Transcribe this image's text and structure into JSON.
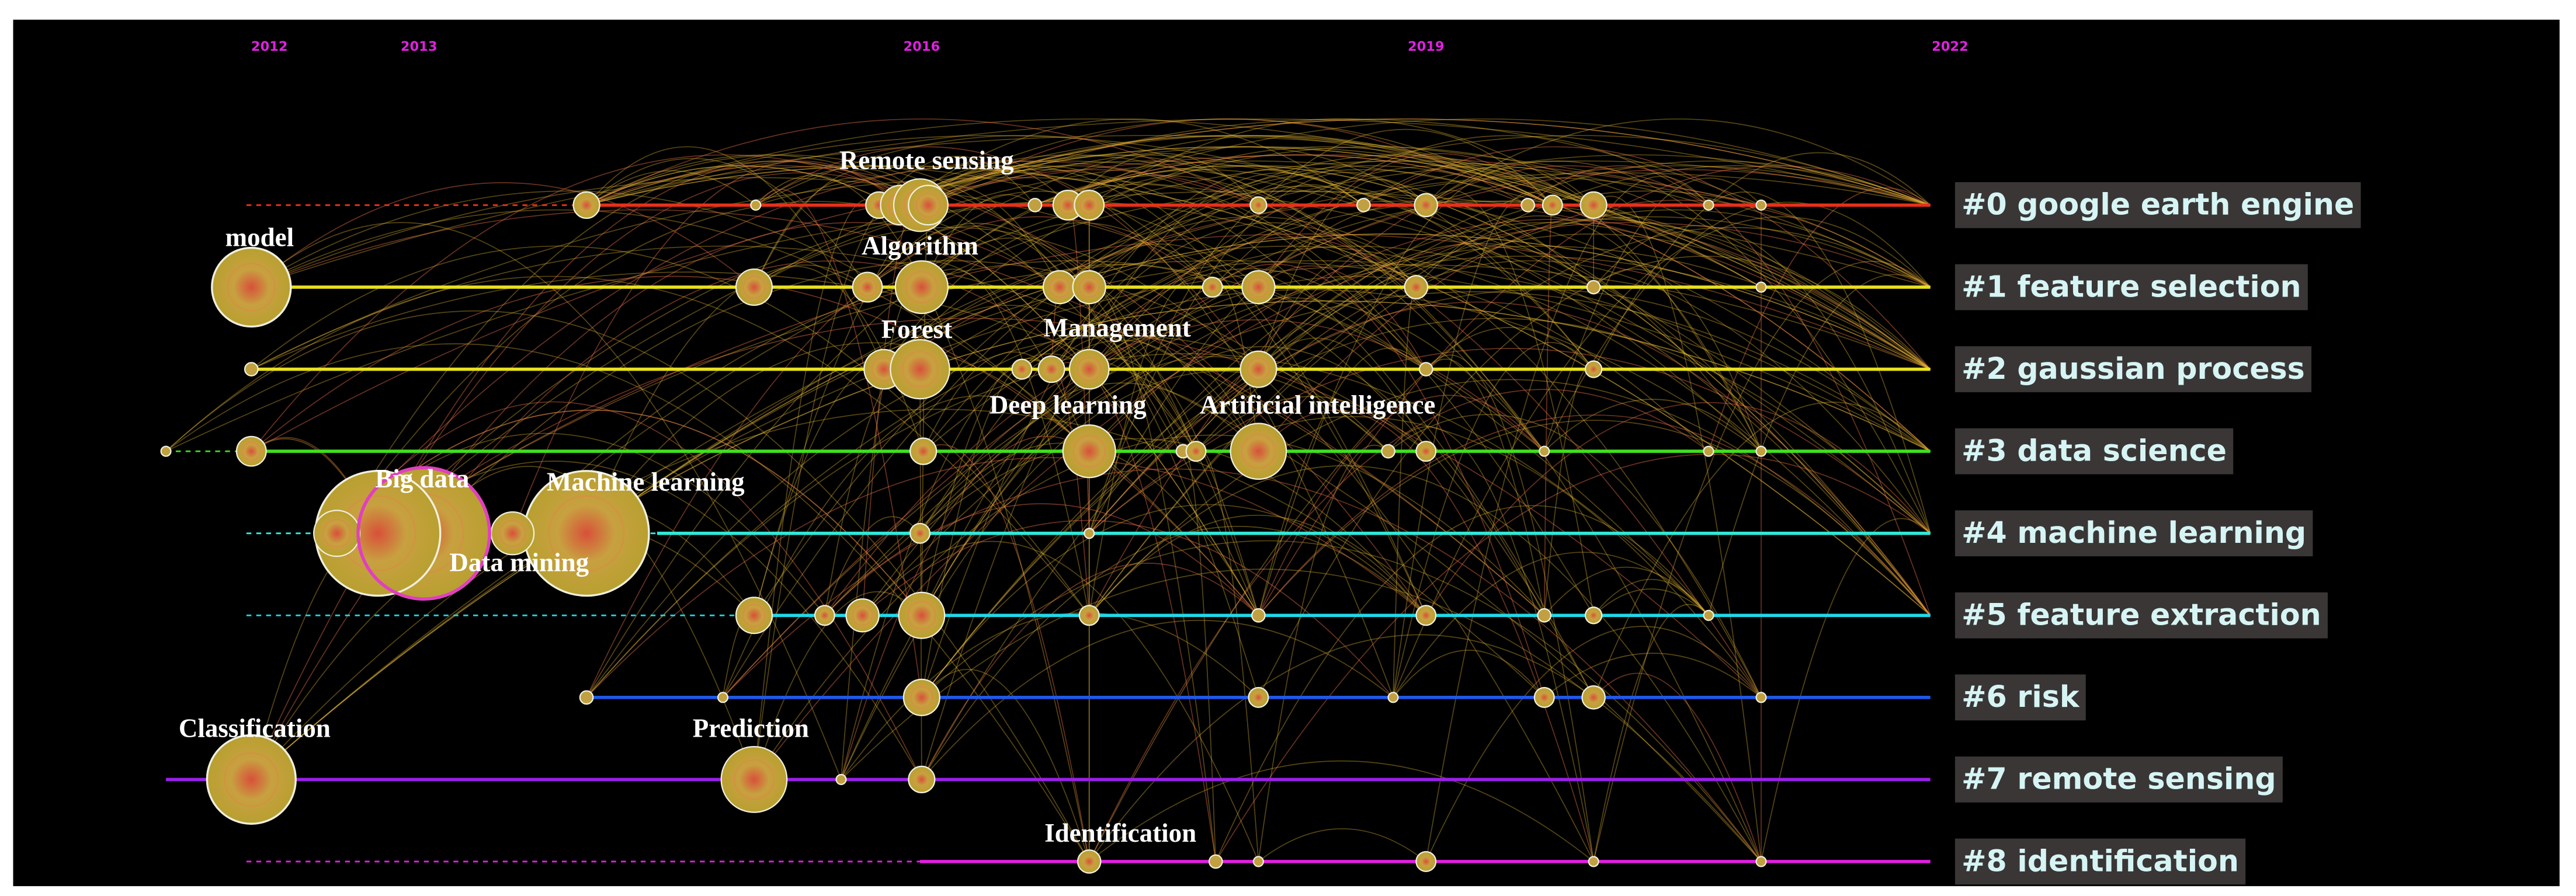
{
  "years": [
    "2012",
    "2013",
    "2016",
    "2019",
    "2022"
  ],
  "clusters": [
    {
      "label": "#0 google earth engine",
      "color": "#e8301a"
    },
    {
      "label": "#1 feature selection",
      "color": "#e8e020"
    },
    {
      "label": "#2 gaussian process",
      "color": "#e8e020"
    },
    {
      "label": "#3 data science",
      "color": "#40e020"
    },
    {
      "label": "#4 machine learning",
      "color": "#30e8d8"
    },
    {
      "label": "#5 feature extraction",
      "color": "#20d8e8"
    },
    {
      "label": "#6 risk",
      "color": "#2058e8"
    },
    {
      "label": "#7 remote sensing",
      "color": "#9a20e8"
    },
    {
      "label": "#8 identification",
      "color": "#e020e0"
    }
  ],
  "keywords": [
    "model",
    "Remote sensing",
    "Algorithm",
    "Forest",
    "Management",
    "Deep learning",
    "Artificial intelligence",
    "Big data",
    "Machine learning",
    "Data mining",
    "Classification",
    "Prediction",
    "Identification"
  ]
}
